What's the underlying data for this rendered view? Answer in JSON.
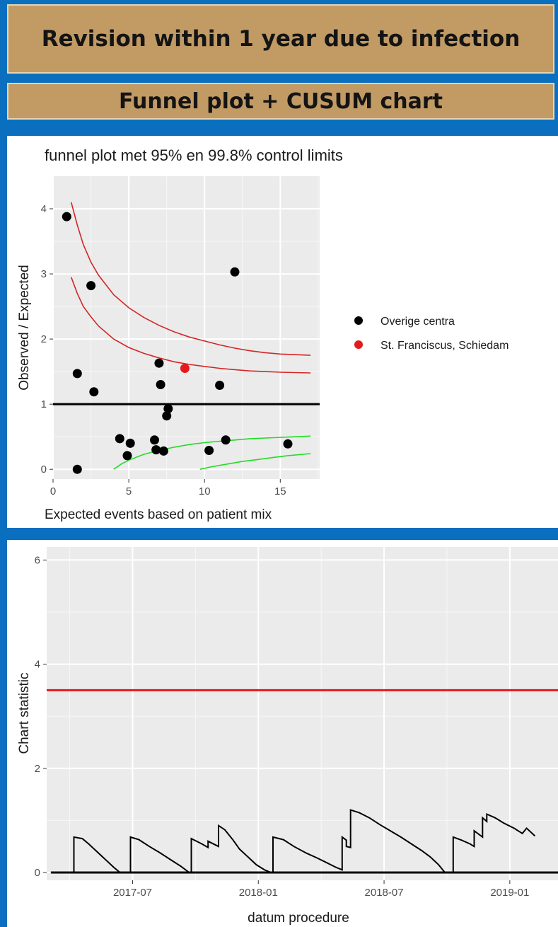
{
  "header": {
    "title": "Revision within 1 year due to infection",
    "subtitle": "Funnel plot + CUSUM chart"
  },
  "colors": {
    "banner": "#c19a64",
    "background": "#0a6fbf",
    "panel_bg": "#ebebeb",
    "limit_upper": "#d32626",
    "limit_lower": "#22dd22",
    "others": "#000000",
    "highlight": "#e41a1c"
  },
  "chart_data": [
    {
      "type": "scatter",
      "title": "funnel plot met 95% en 99.8% control limits",
      "xlabel": "Expected events based on patient mix",
      "ylabel": "Observed / Expected",
      "xlim": [
        0,
        17.6
      ],
      "ylim": [
        -0.15,
        4.5
      ],
      "xticks": [
        0,
        5,
        10,
        15
      ],
      "yticks": [
        0,
        1,
        2,
        3,
        4
      ],
      "reference_line": 1,
      "legend_position": "right",
      "series": [
        {
          "name": "Overige centra",
          "color": "#000000",
          "points": [
            [
              0.9,
              3.88
            ],
            [
              2.5,
              2.82
            ],
            [
              12.0,
              3.03
            ],
            [
              1.6,
              1.47
            ],
            [
              2.7,
              1.19
            ],
            [
              7.0,
              1.63
            ],
            [
              7.1,
              1.3
            ],
            [
              11.0,
              1.29
            ],
            [
              7.5,
              0.82
            ],
            [
              7.6,
              0.93
            ],
            [
              4.4,
              0.47
            ],
            [
              5.1,
              0.4
            ],
            [
              4.9,
              0.21
            ],
            [
              6.7,
              0.45
            ],
            [
              6.8,
              0.3
            ],
            [
              7.3,
              0.28
            ],
            [
              10.3,
              0.29
            ],
            [
              11.4,
              0.45
            ],
            [
              15.5,
              0.39
            ],
            [
              1.6,
              0.0
            ]
          ]
        },
        {
          "name": "St. Franciscus, Schiedam",
          "color": "#e41a1c",
          "points": [
            [
              8.7,
              1.55
            ]
          ]
        }
      ],
      "control_limits": [
        {
          "name": "upper-99.8",
          "color": "#d32626",
          "x": [
            1.2,
            1.6,
            2,
            2.5,
            3,
            4,
            5,
            6,
            7,
            8,
            9,
            10,
            11,
            12,
            13,
            14,
            15,
            16,
            17
          ],
          "y": [
            4.1,
            3.75,
            3.45,
            3.18,
            2.98,
            2.68,
            2.48,
            2.33,
            2.21,
            2.11,
            2.03,
            1.97,
            1.91,
            1.86,
            1.82,
            1.79,
            1.77,
            1.76,
            1.75
          ]
        },
        {
          "name": "upper-95",
          "color": "#d32626",
          "x": [
            1.2,
            1.6,
            2,
            2.5,
            3,
            4,
            5,
            6,
            7,
            8,
            9,
            10,
            11,
            12,
            13,
            14,
            15,
            16,
            17
          ],
          "y": [
            2.95,
            2.7,
            2.5,
            2.34,
            2.2,
            2.0,
            1.87,
            1.78,
            1.71,
            1.65,
            1.61,
            1.58,
            1.55,
            1.53,
            1.51,
            1.5,
            1.49,
            1.485,
            1.48
          ]
        },
        {
          "name": "lower-95",
          "color": "#22dd22",
          "x": [
            4,
            4.5,
            5,
            6,
            7,
            8,
            9,
            10,
            11,
            12,
            13,
            14,
            15,
            16,
            17
          ],
          "y": [
            0.0,
            0.08,
            0.14,
            0.23,
            0.29,
            0.34,
            0.38,
            0.41,
            0.43,
            0.45,
            0.47,
            0.48,
            0.49,
            0.5,
            0.51
          ]
        },
        {
          "name": "lower-99.8",
          "color": "#22dd22",
          "x": [
            9.7,
            10.5,
            11.5,
            12.5,
            13.5,
            14.5,
            15.5,
            16.5,
            17
          ],
          "y": [
            0.0,
            0.04,
            0.08,
            0.12,
            0.15,
            0.18,
            0.21,
            0.23,
            0.24
          ]
        }
      ]
    },
    {
      "type": "line",
      "title": "",
      "xlabel": "datum procedure",
      "ylabel": "Chart statistic",
      "xlim": [
        -1.1,
        23.3
      ],
      "ylim": [
        -0.15,
        6.25
      ],
      "xticks": [
        {
          "value": 3,
          "label": "2017-07"
        },
        {
          "value": 9,
          "label": "2018-01"
        },
        {
          "value": 15,
          "label": "2018-07"
        },
        {
          "value": 21,
          "label": "2019-01"
        }
      ],
      "yticks": [
        0,
        2,
        4,
        6
      ],
      "threshold": {
        "value": 3.5,
        "color": "#e41a1c"
      },
      "baseline": 0,
      "series": [
        {
          "name": "cusum",
          "color": "#000000",
          "points": [
            [
              -0.9,
              0
            ],
            [
              0.2,
              0
            ],
            [
              0.2,
              0.68
            ],
            [
              0.6,
              0.65
            ],
            [
              0.9,
              0.55
            ],
            [
              1.3,
              0.4
            ],
            [
              1.7,
              0.25
            ],
            [
              2.1,
              0.1
            ],
            [
              2.4,
              0
            ],
            [
              2.9,
              0
            ],
            [
              2.9,
              0.68
            ],
            [
              3.3,
              0.63
            ],
            [
              3.8,
              0.5
            ],
            [
              4.3,
              0.38
            ],
            [
              4.8,
              0.25
            ],
            [
              5.3,
              0.12
            ],
            [
              5.7,
              0
            ],
            [
              5.8,
              0
            ],
            [
              5.8,
              0.65
            ],
            [
              6.3,
              0.55
            ],
            [
              6.6,
              0.48
            ],
            [
              6.6,
              0.6
            ],
            [
              7.1,
              0.5
            ],
            [
              7.1,
              0.9
            ],
            [
              7.4,
              0.82
            ],
            [
              7.8,
              0.62
            ],
            [
              8.1,
              0.45
            ],
            [
              8.5,
              0.3
            ],
            [
              8.9,
              0.15
            ],
            [
              9.3,
              0.05
            ],
            [
              9.6,
              0
            ],
            [
              9.7,
              0
            ],
            [
              9.7,
              0.68
            ],
            [
              10.2,
              0.63
            ],
            [
              10.7,
              0.5
            ],
            [
              11.3,
              0.37
            ],
            [
              11.8,
              0.28
            ],
            [
              12.3,
              0.18
            ],
            [
              12.7,
              0.1
            ],
            [
              13.0,
              0.05
            ],
            [
              13.0,
              0.68
            ],
            [
              13.2,
              0.62
            ],
            [
              13.2,
              0.5
            ],
            [
              13.4,
              0.48
            ],
            [
              13.4,
              1.2
            ],
            [
              13.8,
              1.15
            ],
            [
              14.3,
              1.05
            ],
            [
              14.8,
              0.92
            ],
            [
              15.3,
              0.8
            ],
            [
              15.8,
              0.68
            ],
            [
              16.3,
              0.55
            ],
            [
              16.8,
              0.42
            ],
            [
              17.2,
              0.3
            ],
            [
              17.6,
              0.15
            ],
            [
              17.9,
              0
            ],
            [
              18.3,
              0
            ],
            [
              18.3,
              0.68
            ],
            [
              18.7,
              0.62
            ],
            [
              19.1,
              0.55
            ],
            [
              19.3,
              0.5
            ],
            [
              19.3,
              0.8
            ],
            [
              19.7,
              0.68
            ],
            [
              19.7,
              1.05
            ],
            [
              19.9,
              0.98
            ],
            [
              19.9,
              1.12
            ],
            [
              20.3,
              1.05
            ],
            [
              20.7,
              0.95
            ],
            [
              21.2,
              0.85
            ],
            [
              21.6,
              0.75
            ],
            [
              21.8,
              0.85
            ],
            [
              22.2,
              0.7
            ]
          ]
        }
      ]
    }
  ]
}
